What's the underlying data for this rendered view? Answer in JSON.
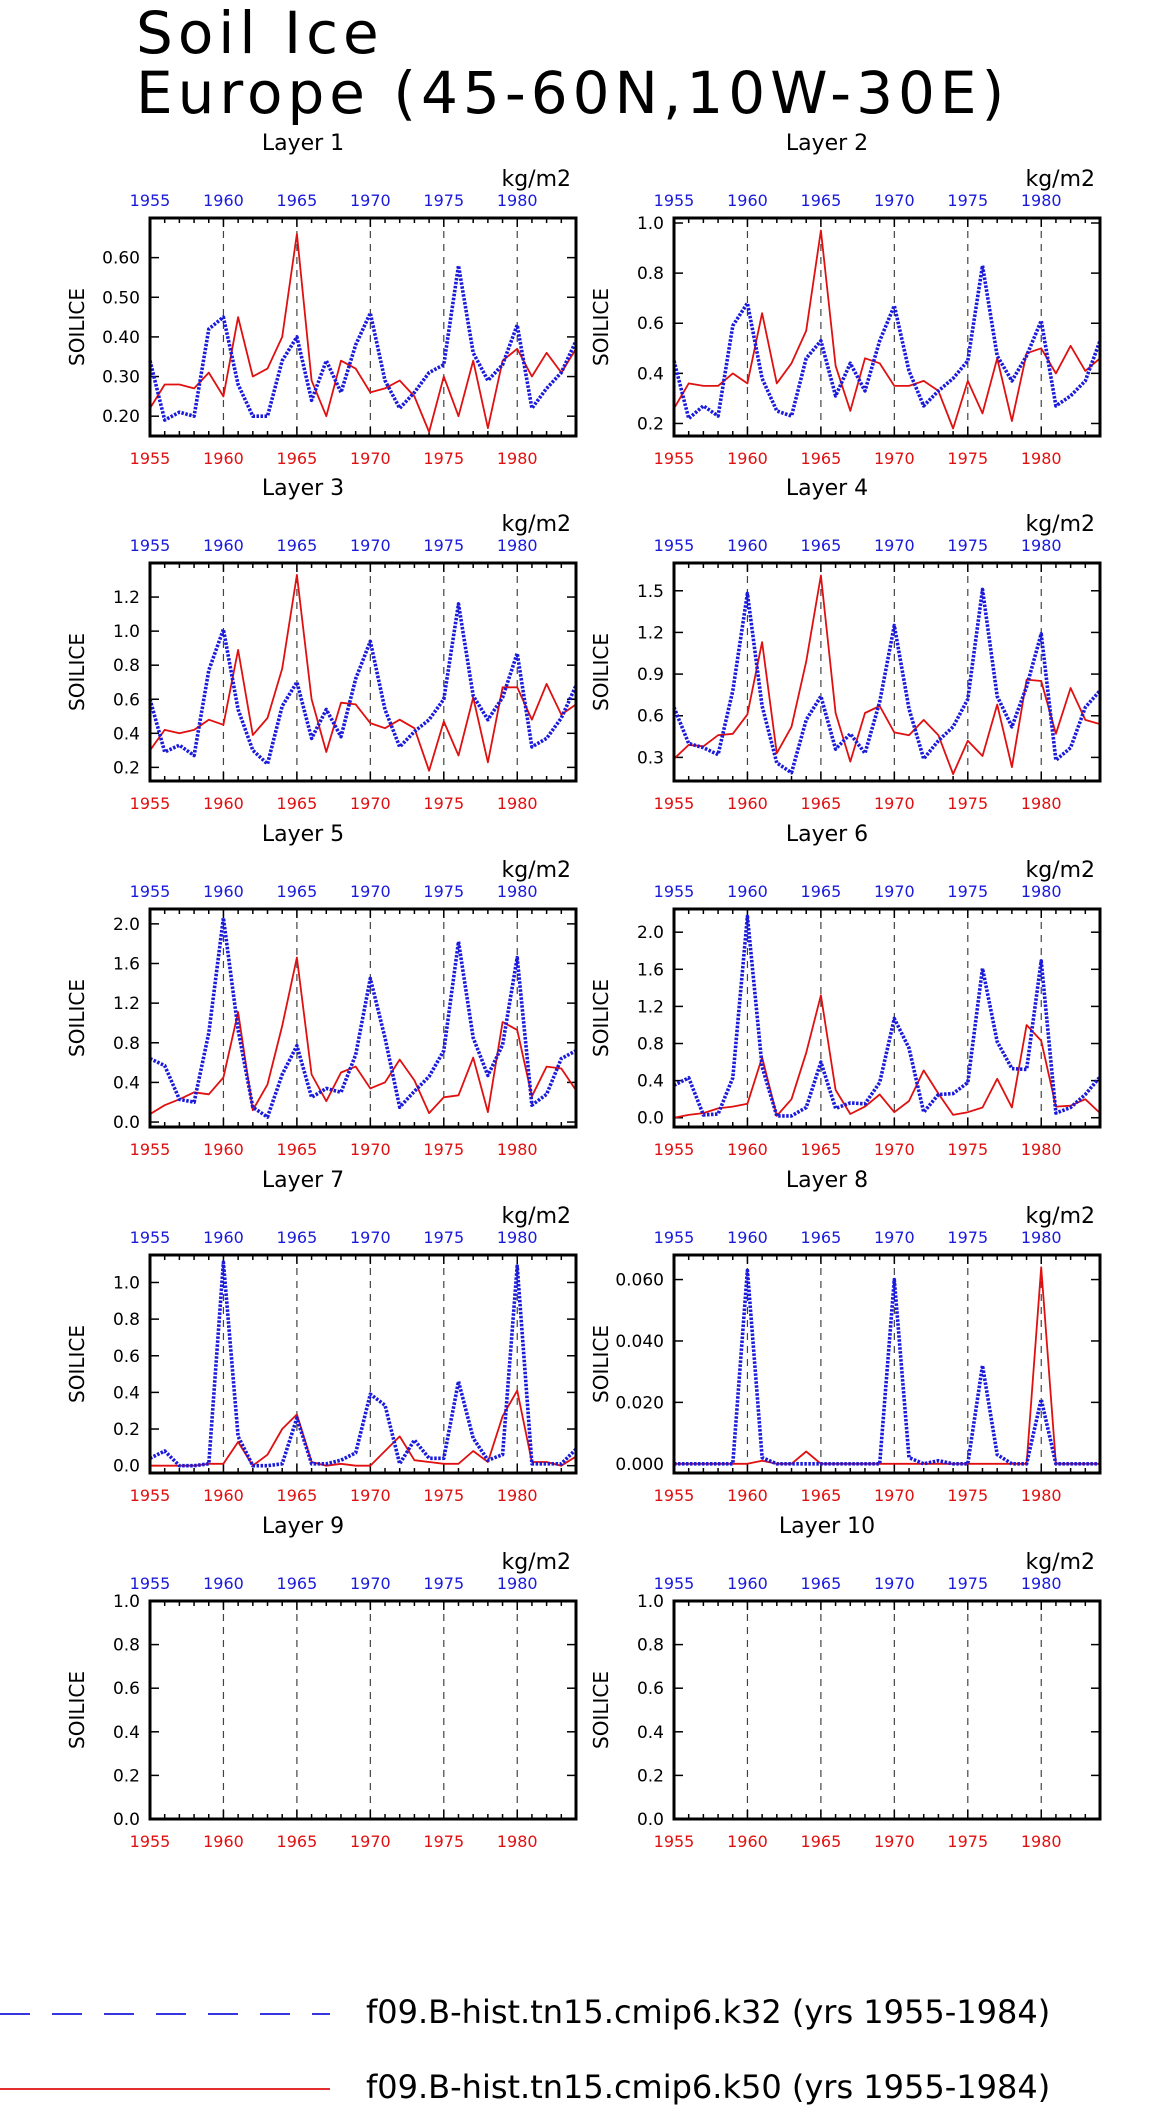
{
  "title_line1": "Soil Ice",
  "title_line2": "Europe (45-60N,10W-30E)",
  "colors": {
    "k32": "#1a1adb",
    "k50": "#e01010",
    "axis": "#000000"
  },
  "chart_data": {
    "type": "line",
    "years": [
      1955,
      1956,
      1957,
      1958,
      1959,
      1960,
      1961,
      1962,
      1963,
      1964,
      1965,
      1966,
      1967,
      1968,
      1969,
      1970,
      1971,
      1972,
      1973,
      1974,
      1975,
      1976,
      1977,
      1978,
      1979,
      1980,
      1981,
      1982,
      1983,
      1984
    ],
    "top_ticks": [
      "1955",
      "1960",
      "1965",
      "1970",
      "1975",
      "1980"
    ],
    "bottom_ticks": [
      "1955",
      "1960",
      "1965",
      "1970",
      "1975",
      "1980"
    ],
    "ylabel": "SOILICE",
    "units": "kg/m2",
    "legend": [
      {
        "name": "f09.B-hist.tn15.cmip6.k32 (yrs 1955-1984)",
        "color": "#1a1adb",
        "style": "dashed"
      },
      {
        "name": "f09.B-hist.tn15.cmip6.k50 (yrs 1955-1984)",
        "color": "#e01010",
        "style": "solid"
      }
    ],
    "panels": [
      {
        "title": "Layer 1",
        "ylim": [
          0.15,
          0.7
        ],
        "yticks": [
          "0.20",
          "0.30",
          "0.40",
          "0.50",
          "0.60"
        ],
        "ytick_vals": [
          0.2,
          0.3,
          0.4,
          0.5,
          0.6
        ],
        "k32": [
          0.34,
          0.19,
          0.21,
          0.2,
          0.42,
          0.45,
          0.28,
          0.2,
          0.2,
          0.34,
          0.4,
          0.24,
          0.34,
          0.26,
          0.38,
          0.46,
          0.29,
          0.22,
          0.26,
          0.31,
          0.33,
          0.58,
          0.36,
          0.29,
          0.33,
          0.43,
          0.22,
          0.27,
          0.31,
          0.39
        ],
        "k50": [
          0.22,
          0.28,
          0.28,
          0.27,
          0.31,
          0.25,
          0.45,
          0.3,
          0.32,
          0.4,
          0.66,
          0.29,
          0.2,
          0.34,
          0.32,
          0.26,
          0.27,
          0.29,
          0.25,
          0.16,
          0.3,
          0.2,
          0.34,
          0.17,
          0.34,
          0.37,
          0.3,
          0.36,
          0.31,
          0.37
        ]
      },
      {
        "title": "Layer 2",
        "ylim": [
          0.15,
          1.02
        ],
        "yticks": [
          "0.2",
          "0.4",
          "0.6",
          "0.8",
          "1.0"
        ],
        "ytick_vals": [
          0.2,
          0.4,
          0.6,
          0.8,
          1.0
        ],
        "k32": [
          0.45,
          0.22,
          0.27,
          0.23,
          0.59,
          0.68,
          0.38,
          0.25,
          0.23,
          0.46,
          0.53,
          0.31,
          0.44,
          0.33,
          0.53,
          0.67,
          0.41,
          0.27,
          0.33,
          0.38,
          0.45,
          0.83,
          0.47,
          0.37,
          0.47,
          0.61,
          0.27,
          0.31,
          0.37,
          0.53
        ],
        "k50": [
          0.26,
          0.36,
          0.35,
          0.35,
          0.4,
          0.36,
          0.64,
          0.36,
          0.44,
          0.57,
          0.97,
          0.43,
          0.25,
          0.46,
          0.44,
          0.35,
          0.35,
          0.37,
          0.33,
          0.18,
          0.37,
          0.24,
          0.46,
          0.21,
          0.48,
          0.5,
          0.4,
          0.51,
          0.41,
          0.46
        ]
      },
      {
        "title": "Layer 3",
        "ylim": [
          0.12,
          1.4
        ],
        "yticks": [
          "0.2",
          "0.4",
          "0.6",
          "0.8",
          "1.0",
          "1.2"
        ],
        "ytick_vals": [
          0.2,
          0.4,
          0.6,
          0.8,
          1.0,
          1.2
        ],
        "k32": [
          0.6,
          0.29,
          0.33,
          0.27,
          0.77,
          1.01,
          0.54,
          0.3,
          0.22,
          0.56,
          0.7,
          0.37,
          0.54,
          0.38,
          0.72,
          0.94,
          0.54,
          0.32,
          0.41,
          0.48,
          0.6,
          1.16,
          0.62,
          0.48,
          0.61,
          0.87,
          0.32,
          0.37,
          0.49,
          0.68
        ],
        "k50": [
          0.3,
          0.42,
          0.4,
          0.42,
          0.48,
          0.45,
          0.89,
          0.39,
          0.49,
          0.78,
          1.33,
          0.6,
          0.29,
          0.58,
          0.57,
          0.46,
          0.43,
          0.48,
          0.43,
          0.18,
          0.47,
          0.27,
          0.61,
          0.23,
          0.67,
          0.67,
          0.48,
          0.69,
          0.51,
          0.57
        ]
      },
      {
        "title": "Layer 4",
        "ylim": [
          0.13,
          1.7
        ],
        "yticks": [
          "0.3",
          "0.6",
          "0.9",
          "1.2",
          "1.5"
        ],
        "ytick_vals": [
          0.3,
          0.6,
          0.9,
          1.2,
          1.5
        ],
        "k32": [
          0.66,
          0.4,
          0.37,
          0.32,
          0.78,
          1.48,
          0.67,
          0.26,
          0.19,
          0.57,
          0.74,
          0.36,
          0.47,
          0.33,
          0.7,
          1.25,
          0.65,
          0.29,
          0.42,
          0.52,
          0.72,
          1.51,
          0.74,
          0.52,
          0.81,
          1.19,
          0.28,
          0.37,
          0.66,
          0.78
        ],
        "k50": [
          0.29,
          0.39,
          0.38,
          0.46,
          0.47,
          0.61,
          1.13,
          0.33,
          0.52,
          0.99,
          1.61,
          0.62,
          0.27,
          0.62,
          0.67,
          0.48,
          0.46,
          0.57,
          0.46,
          0.18,
          0.42,
          0.31,
          0.68,
          0.23,
          0.86,
          0.85,
          0.47,
          0.8,
          0.57,
          0.54
        ]
      },
      {
        "title": "Layer 5",
        "ylim": [
          -0.05,
          2.15
        ],
        "yticks": [
          "0.0",
          "0.4",
          "0.8",
          "1.2",
          "1.6",
          "2.0"
        ],
        "ytick_vals": [
          0.0,
          0.4,
          0.8,
          1.2,
          1.6,
          2.0
        ],
        "k32": [
          0.64,
          0.57,
          0.23,
          0.2,
          0.9,
          2.06,
          0.93,
          0.15,
          0.05,
          0.48,
          0.77,
          0.25,
          0.34,
          0.3,
          0.68,
          1.45,
          0.85,
          0.15,
          0.31,
          0.46,
          0.72,
          1.82,
          0.85,
          0.47,
          0.78,
          1.66,
          0.17,
          0.28,
          0.64,
          0.72
        ],
        "k50": [
          0.08,
          0.17,
          0.23,
          0.3,
          0.28,
          0.45,
          1.11,
          0.12,
          0.38,
          0.97,
          1.66,
          0.48,
          0.21,
          0.5,
          0.56,
          0.34,
          0.4,
          0.63,
          0.42,
          0.09,
          0.25,
          0.27,
          0.65,
          0.1,
          1.01,
          0.93,
          0.26,
          0.56,
          0.54,
          0.32
        ]
      },
      {
        "title": "Layer 6",
        "ylim": [
          -0.1,
          2.25
        ],
        "yticks": [
          "0.0",
          "0.4",
          "0.8",
          "1.2",
          "1.6",
          "2.0"
        ],
        "ytick_vals": [
          0.0,
          0.4,
          0.8,
          1.2,
          1.6,
          2.0
        ],
        "k32": [
          0.35,
          0.43,
          0.03,
          0.04,
          0.43,
          2.17,
          0.55,
          0.02,
          0.02,
          0.11,
          0.6,
          0.1,
          0.16,
          0.15,
          0.38,
          1.07,
          0.75,
          0.06,
          0.25,
          0.26,
          0.38,
          1.61,
          0.82,
          0.53,
          0.52,
          1.69,
          0.05,
          0.11,
          0.25,
          0.44
        ],
        "k50": [
          0.0,
          0.03,
          0.05,
          0.1,
          0.12,
          0.15,
          0.65,
          0.02,
          0.2,
          0.7,
          1.32,
          0.3,
          0.04,
          0.12,
          0.25,
          0.06,
          0.18,
          0.51,
          0.26,
          0.03,
          0.06,
          0.11,
          0.42,
          0.11,
          1.0,
          0.83,
          0.12,
          0.13,
          0.2,
          0.05
        ]
      },
      {
        "title": "Layer 7",
        "ylim": [
          -0.04,
          1.15
        ],
        "yticks": [
          "0.0",
          "0.2",
          "0.4",
          "0.6",
          "0.8",
          "1.0"
        ],
        "ytick_vals": [
          0.0,
          0.2,
          0.4,
          0.6,
          0.8,
          1.0
        ],
        "k32": [
          0.04,
          0.08,
          0.0,
          0.0,
          0.01,
          1.11,
          0.16,
          0.0,
          0.0,
          0.01,
          0.26,
          0.01,
          0.01,
          0.03,
          0.07,
          0.39,
          0.33,
          0.01,
          0.14,
          0.04,
          0.04,
          0.46,
          0.15,
          0.03,
          0.06,
          1.09,
          0.01,
          0.01,
          0.01,
          0.09
        ],
        "k50": [
          0.0,
          0.0,
          0.0,
          0.0,
          0.01,
          0.01,
          0.13,
          0.0,
          0.06,
          0.2,
          0.28,
          0.02,
          0.0,
          0.01,
          0.0,
          0.0,
          0.08,
          0.16,
          0.03,
          0.02,
          0.01,
          0.01,
          0.08,
          0.02,
          0.27,
          0.41,
          0.02,
          0.02,
          0.0,
          0.05
        ]
      },
      {
        "title": "Layer 8",
        "ylim": [
          -0.003,
          0.068
        ],
        "yticks": [
          "0.000",
          "0.020",
          "0.040",
          "0.060"
        ],
        "ytick_vals": [
          0.0,
          0.02,
          0.04,
          0.06
        ],
        "k32": [
          0.0,
          0.0,
          0.0,
          0.0,
          0.0,
          0.063,
          0.002,
          0.0,
          0.0,
          0.0,
          0.0,
          0.0,
          0.0,
          0.0,
          0.0,
          0.06,
          0.002,
          0.0,
          0.001,
          0.0,
          0.0,
          0.032,
          0.003,
          0.0,
          0.0,
          0.021,
          0.0,
          0.0,
          0.0,
          0.0
        ],
        "k50": [
          0.0,
          0.0,
          0.0,
          0.0,
          0.0,
          0.0,
          0.001,
          0.0,
          0.0,
          0.004,
          0.0,
          0.0,
          0.0,
          0.0,
          0.0,
          0.0,
          0.0,
          0.0,
          0.0,
          0.0,
          0.0,
          0.0,
          0.0,
          0.0,
          0.0,
          0.064,
          0.0,
          0.0,
          0.0,
          0.0
        ]
      },
      {
        "title": "Layer 9",
        "ylim": [
          0.0,
          1.0
        ],
        "yticks": [
          "0.0",
          "0.2",
          "0.4",
          "0.6",
          "0.8",
          "1.0"
        ],
        "ytick_vals": [
          0.0,
          0.2,
          0.4,
          0.6,
          0.8,
          1.0
        ],
        "k32": [],
        "k50": []
      },
      {
        "title": "Layer 10",
        "ylim": [
          0.0,
          1.0
        ],
        "yticks": [
          "0.0",
          "0.2",
          "0.4",
          "0.6",
          "0.8",
          "1.0"
        ],
        "ytick_vals": [
          0.0,
          0.2,
          0.4,
          0.6,
          0.8,
          1.0
        ],
        "k32": [],
        "k50": []
      }
    ]
  }
}
